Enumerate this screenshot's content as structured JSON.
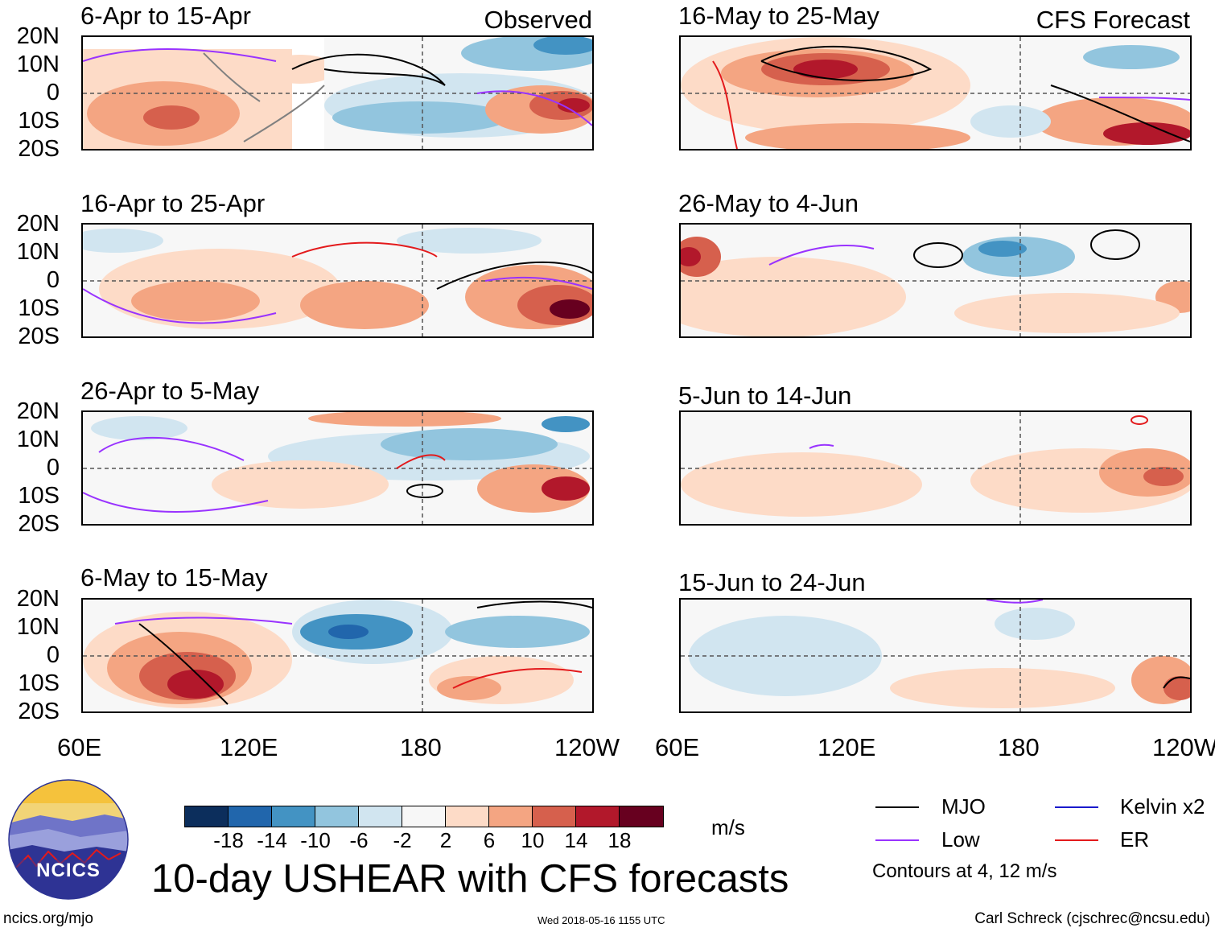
{
  "columns": {
    "observed_label": "Observed",
    "forecast_label": "CFS Forecast"
  },
  "observed_panels": [
    {
      "title": "6-Apr to 15-Apr"
    },
    {
      "title": "16-Apr to 25-Apr"
    },
    {
      "title": "26-Apr to 5-May"
    },
    {
      "title": "6-May to 15-May"
    }
  ],
  "forecast_panels": [
    {
      "title": "16-May to 25-May"
    },
    {
      "title": "26-May to 4-Jun"
    },
    {
      "title": "5-Jun to 14-Jun"
    },
    {
      "title": "15-Jun to 24-Jun"
    }
  ],
  "lat_labels": [
    "20N",
    "10N",
    "0",
    "10S",
    "20S"
  ],
  "lon_labels": [
    "60E",
    "120E",
    "180",
    "120W"
  ],
  "colorbar": {
    "colors": [
      "#0c2e5c",
      "#2166ac",
      "#4393c3",
      "#92c5de",
      "#d1e5f0",
      "#f7f7f7",
      "#fddbc7",
      "#f4a582",
      "#d6604d",
      "#b2182b",
      "#67001f"
    ],
    "labels": [
      "-18",
      "-14",
      "-10",
      "-6",
      "-2",
      "2",
      "6",
      "10",
      "14",
      "18"
    ],
    "unit": "m/s"
  },
  "title": "10-day USHEAR with CFS forecasts",
  "legend": {
    "mjo": {
      "label": "MJO",
      "color": "#000000"
    },
    "low": {
      "label": "Low",
      "color": "#9933ff"
    },
    "kelvin": {
      "label": "Kelvin x2",
      "color": "#1a1acc"
    },
    "er": {
      "label": "ER",
      "color": "#e31a1c"
    },
    "note": "Contours at 4, 12 m/s"
  },
  "logo": {
    "text": "NCICS"
  },
  "footer": {
    "url": "ncics.org/mjo",
    "timestamp": "Wed 2018-05-16 1155 UTC",
    "credit": "Carl Schreck (cjschrec@ncsu.edu)"
  }
}
